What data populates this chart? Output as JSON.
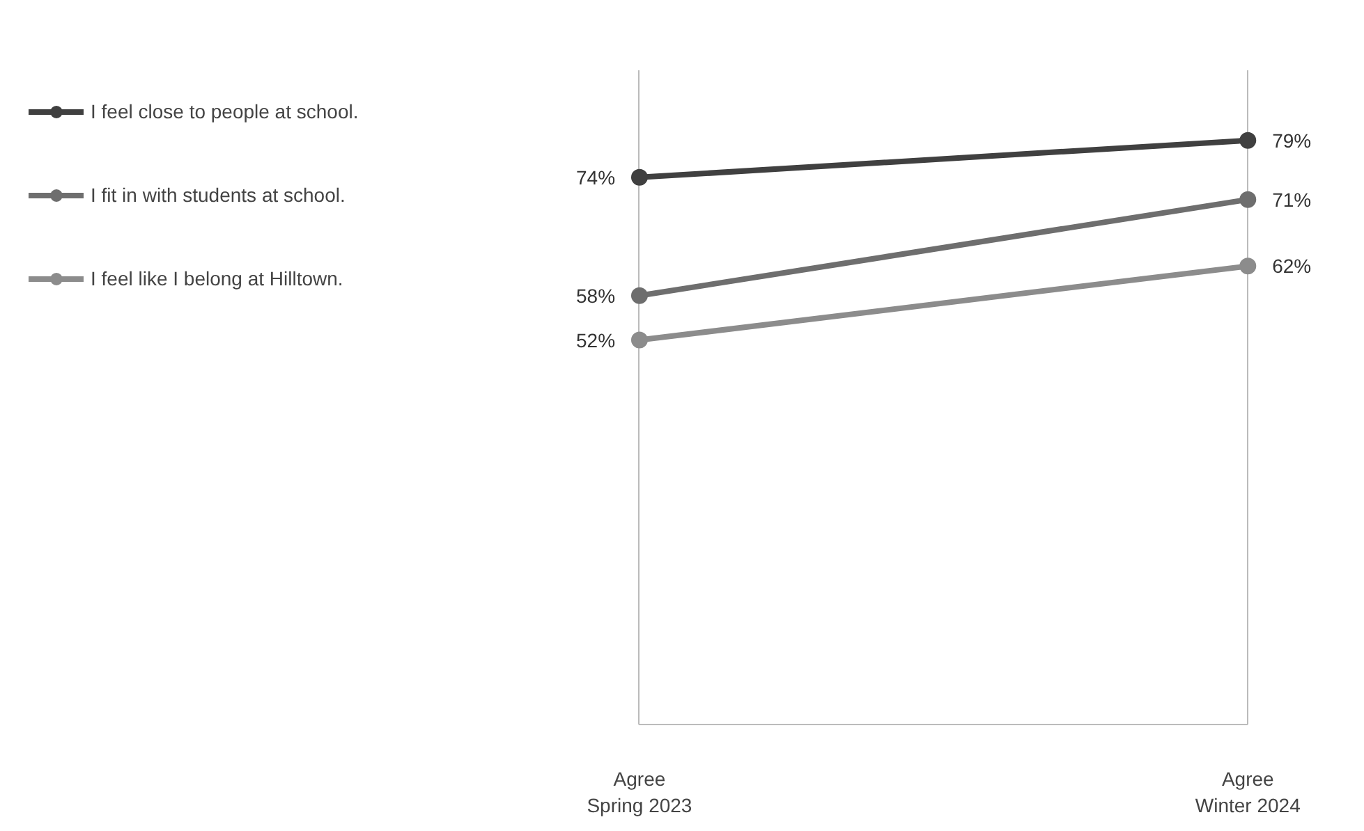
{
  "chart_data": {
    "type": "line",
    "categories": [
      "Agree\nSpring 2023",
      "Agree\nWinter 2024"
    ],
    "series": [
      {
        "name": "I feel close to people at school.",
        "color": "#404040",
        "values": [
          74,
          79
        ],
        "value_labels": [
          "74%",
          "79%"
        ]
      },
      {
        "name": "I fit in with students at school.",
        "color": "#6e6e6e",
        "values": [
          58,
          71
        ],
        "value_labels": [
          "58%",
          "71%"
        ]
      },
      {
        "name": "I feel like I belong at Hilltown.",
        "color": "#8c8c8c",
        "values": [
          52,
          62
        ],
        "value_labels": [
          "52%",
          "62%"
        ]
      }
    ],
    "grid": "x",
    "legend": "left",
    "marker": "circle",
    "line_style": "solid"
  }
}
